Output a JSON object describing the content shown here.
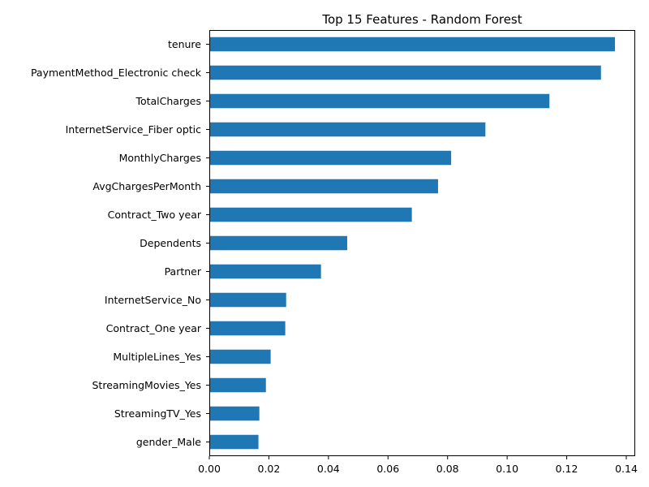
{
  "chart_data": {
    "type": "bar",
    "orientation": "horizontal",
    "title": "Top 15 Features - Random Forest",
    "xlabel": "",
    "ylabel": "",
    "categories": [
      "tenure",
      "PaymentMethod_Electronic check",
      "TotalCharges",
      "InternetService_Fiber optic",
      "MonthlyCharges",
      "AvgChargesPerMonth",
      "Contract_Two year",
      "Dependents",
      "Partner",
      "InternetService_No",
      "Contract_One year",
      "MultipleLines_Yes",
      "StreamingMovies_Yes",
      "StreamingTV_Yes",
      "gender_Male"
    ],
    "values": [
      0.1362,
      0.1315,
      0.1142,
      0.0927,
      0.0812,
      0.0768,
      0.068,
      0.0463,
      0.0375,
      0.0258,
      0.0255,
      0.0206,
      0.019,
      0.0168,
      0.0165
    ],
    "xlim": [
      0,
      0.143
    ],
    "xticks": [
      0.0,
      0.02,
      0.04,
      0.06,
      0.08,
      0.1,
      0.12,
      0.14
    ],
    "xtick_labels": [
      "0.00",
      "0.02",
      "0.04",
      "0.06",
      "0.08",
      "0.10",
      "0.12",
      "0.14"
    ],
    "bar_color": "#1f77b4",
    "grid": false,
    "legend": "none"
  }
}
